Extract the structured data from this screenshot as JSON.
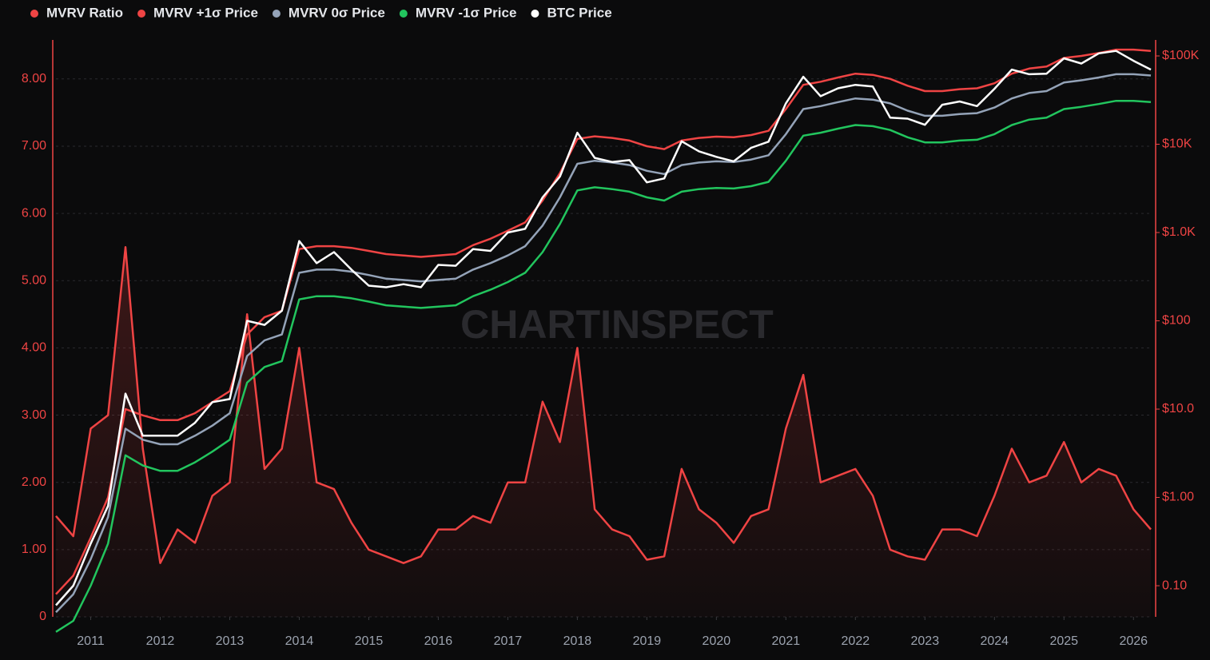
{
  "chart_data": {
    "type": "line",
    "watermark": "CHARTINSPECT",
    "x": [
      2010.5,
      2010.75,
      2011,
      2011.25,
      2011.5,
      2011.75,
      2012,
      2012.25,
      2012.5,
      2012.75,
      2013,
      2013.25,
      2013.5,
      2013.75,
      2014,
      2014.25,
      2014.5,
      2014.75,
      2015,
      2015.25,
      2015.5,
      2015.75,
      2016,
      2016.25,
      2016.5,
      2016.75,
      2017,
      2017.25,
      2017.5,
      2017.75,
      2018,
      2018.25,
      2018.5,
      2018.75,
      2019,
      2019.25,
      2019.5,
      2019.75,
      2020,
      2020.25,
      2020.5,
      2020.75,
      2021,
      2021.25,
      2021.5,
      2021.75,
      2022,
      2022.25,
      2022.5,
      2022.75,
      2023,
      2023.25,
      2023.5,
      2023.75,
      2024,
      2024.25,
      2024.5,
      2024.75,
      2025,
      2025.25,
      2025.5,
      2025.75,
      2026,
      2026.25
    ],
    "xlim": [
      2010.5,
      2026.25
    ],
    "xticks": [
      2011,
      2012,
      2013,
      2014,
      2015,
      2016,
      2017,
      2018,
      2019,
      2020,
      2021,
      2022,
      2023,
      2024,
      2025,
      2026
    ],
    "ylim": [
      0,
      8.58
    ],
    "yticks": [
      0,
      {
        "value": 1,
        "label": "1.00"
      },
      {
        "value": 2,
        "label": "2.00"
      },
      {
        "value": 3,
        "label": "3.00"
      },
      {
        "value": 4,
        "label": "4.00"
      },
      {
        "value": 5,
        "label": "5.00"
      },
      {
        "value": 6,
        "label": "6.00"
      },
      {
        "value": 7,
        "label": "7.00"
      },
      {
        "value": 8,
        "label": "8.00"
      }
    ],
    "y2lim": [
      0.0444,
      151700
    ],
    "y2log": true,
    "y2ticks": [
      {
        "value": 0.1,
        "label": "0.10"
      },
      {
        "value": 1,
        "label": "$1.00"
      },
      {
        "value": 10,
        "label": "$10.0"
      },
      {
        "value": 100,
        "label": "$100"
      },
      {
        "value": 1000,
        "label": "$1.0K"
      },
      {
        "value": 10000,
        "label": "$10K"
      },
      {
        "value": 100000,
        "label": "$100K"
      }
    ],
    "grid": true,
    "legend": "top-left",
    "series": [
      {
        "name": "MVRV Ratio",
        "color": "#ef4444",
        "axis": "y",
        "area": true,
        "values": [
          1.5,
          1.2,
          2.8,
          3.0,
          5.5,
          2.5,
          0.8,
          1.3,
          1.1,
          1.8,
          2.0,
          4.5,
          2.2,
          2.5,
          4.0,
          2.0,
          1.9,
          1.4,
          1.0,
          0.9,
          0.8,
          0.9,
          1.3,
          1.3,
          1.5,
          1.4,
          2.0,
          2.0,
          3.2,
          2.6,
          4.0,
          1.6,
          1.3,
          1.2,
          0.85,
          0.9,
          2.2,
          1.6,
          1.4,
          1.1,
          1.5,
          1.6,
          2.8,
          3.6,
          2.0,
          2.1,
          2.2,
          1.8,
          1.0,
          0.9,
          0.85,
          1.3,
          1.3,
          1.2,
          1.8,
          2.5,
          2.0,
          2.1,
          2.6,
          2.0,
          2.2,
          2.1,
          1.6,
          1.3
        ]
      },
      {
        "name": "MVRV +1σ Price",
        "color": "#ef4444",
        "axis": "y2",
        "values": [
          0.08,
          0.13,
          0.35,
          1.0,
          10,
          8.5,
          7.5,
          7.5,
          9,
          12,
          16,
          70,
          110,
          130,
          650,
          700,
          700,
          670,
          620,
          570,
          550,
          530,
          550,
          570,
          720,
          850,
          1050,
          1300,
          2300,
          4700,
          11500,
          12300,
          11800,
          11000,
          9500,
          8800,
          11000,
          11800,
          12200,
          12000,
          12700,
          14200,
          25000,
          47000,
          51000,
          57000,
          63000,
          61000,
          55000,
          46000,
          40000,
          40000,
          42000,
          43000,
          49000,
          63000,
          72000,
          76000,
          95000,
          100000,
          108000,
          118000,
          118000,
          114000
        ]
      },
      {
        "name": "MVRV 0σ Price",
        "color": "#94a3b8",
        "axis": "y2",
        "values": [
          0.05,
          0.08,
          0.2,
          0.6,
          6,
          4.5,
          4,
          4,
          5,
          6.5,
          9,
          40,
          60,
          70,
          350,
          380,
          380,
          360,
          330,
          300,
          290,
          280,
          290,
          300,
          380,
          450,
          550,
          700,
          1200,
          2500,
          6000,
          6500,
          6200,
          5800,
          5000,
          4600,
          5800,
          6200,
          6400,
          6300,
          6700,
          7500,
          13000,
          25000,
          27000,
          30000,
          33000,
          32000,
          29000,
          24000,
          21000,
          21000,
          22000,
          22500,
          26000,
          33000,
          38000,
          40000,
          50000,
          53000,
          57000,
          62000,
          62000,
          60000
        ]
      },
      {
        "name": "MVRV -1σ Price",
        "color": "#22c55e",
        "axis": "y2",
        "values": [
          0.03,
          0.04,
          0.1,
          0.3,
          3,
          2.3,
          2,
          2,
          2.5,
          3.3,
          4.5,
          20,
          30,
          35,
          175,
          190,
          190,
          180,
          165,
          150,
          145,
          140,
          145,
          150,
          190,
          225,
          275,
          350,
          600,
          1250,
          3000,
          3250,
          3100,
          2900,
          2500,
          2300,
          2900,
          3100,
          3200,
          3150,
          3350,
          3750,
          6500,
          12500,
          13500,
          15000,
          16500,
          16000,
          14500,
          12000,
          10500,
          10500,
          11000,
          11250,
          13000,
          16500,
          19000,
          20000,
          25000,
          26500,
          28500,
          31000,
          31000,
          30000
        ]
      },
      {
        "name": "BTC Price",
        "color": "#ffffff",
        "axis": "y2",
        "values": [
          0.06,
          0.1,
          0.3,
          0.8,
          15,
          5,
          5,
          5,
          7,
          12,
          13,
          100,
          90,
          130,
          800,
          450,
          600,
          380,
          250,
          240,
          260,
          240,
          430,
          420,
          650,
          620,
          1000,
          1100,
          2500,
          4300,
          13500,
          7000,
          6300,
          6600,
          3700,
          4100,
          10800,
          8300,
          7200,
          6400,
          9100,
          10700,
          29000,
          58000,
          35000,
          43000,
          47000,
          45000,
          20000,
          19500,
          16600,
          28000,
          30500,
          27000,
          42500,
          70000,
          62000,
          63000,
          94000,
          82000,
          107000,
          114000,
          88000,
          70000
        ]
      }
    ]
  }
}
